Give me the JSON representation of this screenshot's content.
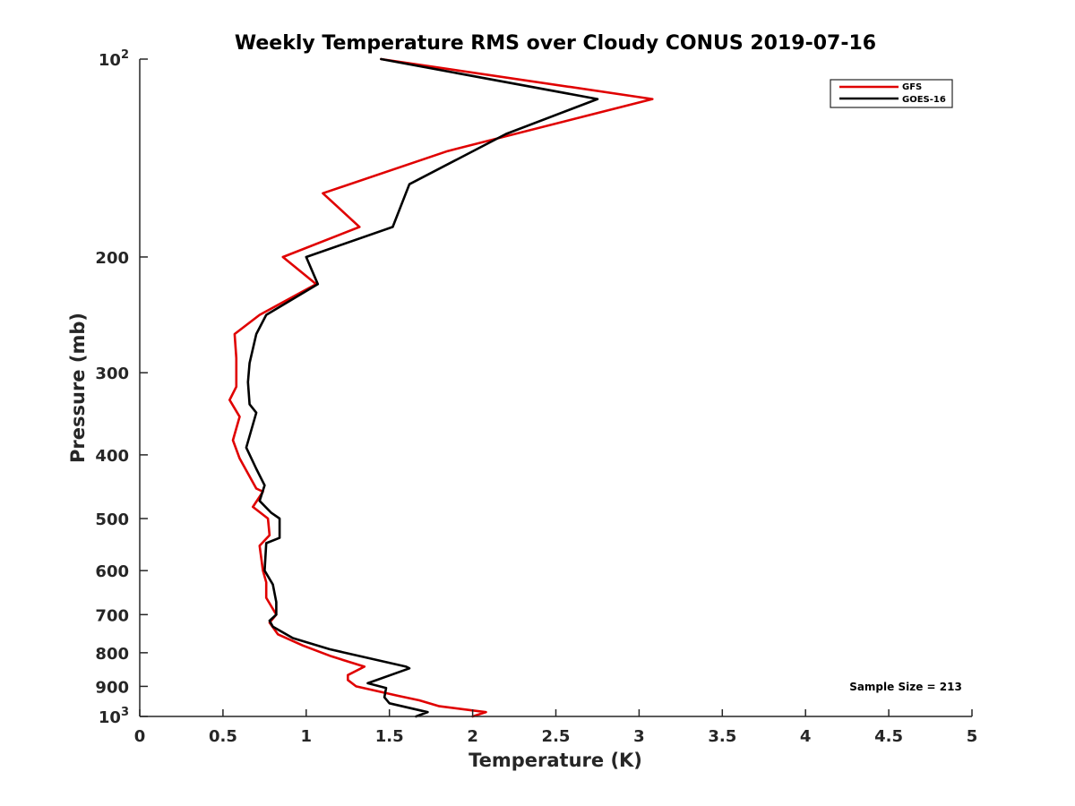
{
  "chart_data": {
    "type": "line",
    "title": "Weekly Temperature RMS over Cloudy CONUS 2019-07-16",
    "xlabel": "Temperature (K)",
    "ylabel": "Pressure (mb)",
    "xlim": [
      0,
      5
    ],
    "ylim": [
      1000,
      100
    ],
    "yscale": "log",
    "xticks": [
      0,
      0.5,
      1,
      1.5,
      2,
      2.5,
      3,
      3.5,
      4,
      4.5,
      5
    ],
    "xtick_labels": [
      "0",
      "0.5",
      "1",
      "1.5",
      "2",
      "2.5",
      "3",
      "3.5",
      "4",
      "4.5",
      "5"
    ],
    "yticks": [
      100,
      200,
      300,
      400,
      500,
      600,
      700,
      800,
      900,
      1000
    ],
    "ytick_labels": [
      {
        "base": "10",
        "exp": "2"
      },
      {
        "text": "200"
      },
      {
        "text": "300"
      },
      {
        "text": "400"
      },
      {
        "text": "500"
      },
      {
        "text": "600"
      },
      {
        "text": "700"
      },
      {
        "text": "800"
      },
      {
        "text": "900"
      },
      {
        "base": "10",
        "exp": "3"
      }
    ],
    "legend_position": "top-right",
    "annotation": "Sample Size = 213",
    "series": [
      {
        "name": "GFS",
        "color": "#e00000",
        "points": [
          [
            1.45,
            100
          ],
          [
            3.08,
            115
          ],
          [
            1.85,
            138
          ],
          [
            1.1,
            160
          ],
          [
            1.32,
            180
          ],
          [
            0.86,
            200
          ],
          [
            1.06,
            220
          ],
          [
            0.72,
            245
          ],
          [
            0.57,
            262
          ],
          [
            0.58,
            285
          ],
          [
            0.58,
            315
          ],
          [
            0.54,
            330
          ],
          [
            0.6,
            350
          ],
          [
            0.56,
            380
          ],
          [
            0.6,
            405
          ],
          [
            0.7,
            450
          ],
          [
            0.74,
            455
          ],
          [
            0.68,
            480
          ],
          [
            0.77,
            500
          ],
          [
            0.78,
            530
          ],
          [
            0.72,
            550
          ],
          [
            0.74,
            600
          ],
          [
            0.76,
            625
          ],
          [
            0.76,
            660
          ],
          [
            0.82,
            700
          ],
          [
            0.78,
            720
          ],
          [
            0.83,
            750
          ],
          [
            0.98,
            780
          ],
          [
            1.15,
            810
          ],
          [
            1.35,
            840
          ],
          [
            1.25,
            865
          ],
          [
            1.25,
            880
          ],
          [
            1.3,
            900
          ],
          [
            1.55,
            930
          ],
          [
            1.68,
            945
          ],
          [
            1.8,
            965
          ],
          [
            2.08,
            985
          ],
          [
            2.0,
            1000
          ]
        ]
      },
      {
        "name": "GOES-16",
        "color": "#000000",
        "points": [
          [
            1.45,
            100
          ],
          [
            2.75,
            115
          ],
          [
            2.2,
            130
          ],
          [
            1.62,
            155
          ],
          [
            1.52,
            180
          ],
          [
            1.0,
            200
          ],
          [
            1.07,
            220
          ],
          [
            0.76,
            245
          ],
          [
            0.7,
            262
          ],
          [
            0.66,
            290
          ],
          [
            0.65,
            310
          ],
          [
            0.66,
            335
          ],
          [
            0.7,
            345
          ],
          [
            0.64,
            390
          ],
          [
            0.7,
            420
          ],
          [
            0.75,
            445
          ],
          [
            0.72,
            470
          ],
          [
            0.79,
            490
          ],
          [
            0.84,
            500
          ],
          [
            0.84,
            535
          ],
          [
            0.76,
            545
          ],
          [
            0.75,
            600
          ],
          [
            0.8,
            630
          ],
          [
            0.82,
            670
          ],
          [
            0.82,
            700
          ],
          [
            0.78,
            715
          ],
          [
            0.8,
            730
          ],
          [
            0.92,
            760
          ],
          [
            1.14,
            790
          ],
          [
            1.6,
            840
          ],
          [
            1.62,
            845
          ],
          [
            1.37,
            890
          ],
          [
            1.48,
            905
          ],
          [
            1.47,
            935
          ],
          [
            1.5,
            955
          ],
          [
            1.73,
            985
          ],
          [
            1.66,
            1000
          ]
        ]
      }
    ]
  }
}
